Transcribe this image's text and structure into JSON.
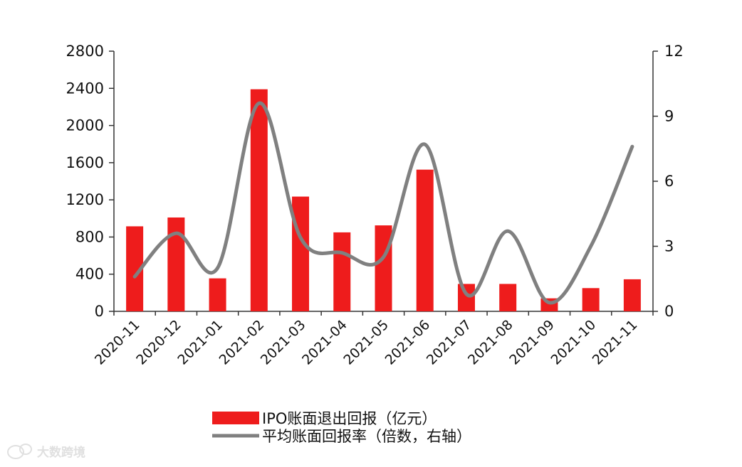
{
  "chart_data": {
    "type": "bar",
    "categories": [
      "2020-11",
      "2020-12",
      "2021-01",
      "2021-02",
      "2021-03",
      "2021-04",
      "2021-05",
      "2021-06",
      "2021-07",
      "2021-08",
      "2021-09",
      "2021-10",
      "2021-11"
    ],
    "series": [
      {
        "name": "IPO账面退出回报（亿元）",
        "type": "bar",
        "axis": "left",
        "color": "#ee1c1c",
        "values": [
          915,
          1010,
          355,
          2390,
          1235,
          850,
          925,
          1525,
          295,
          295,
          140,
          250,
          345
        ]
      },
      {
        "name": "平均账面回报率（倍数，右轴）",
        "type": "line",
        "axis": "right",
        "smooth": true,
        "color": "#808080",
        "values": [
          1.6,
          3.6,
          2.0,
          9.6,
          3.4,
          2.7,
          2.5,
          7.7,
          0.8,
          3.7,
          0.4,
          3.0,
          7.6
        ]
      }
    ],
    "y_left": {
      "ticks": [
        "0",
        "400",
        "800",
        "1200",
        "1600",
        "2000",
        "2400",
        "2800"
      ],
      "ylim": [
        0,
        2800
      ]
    },
    "y_right": {
      "ticks": [
        "0",
        "3",
        "6",
        "9",
        "12"
      ],
      "ylim": [
        0,
        12
      ]
    },
    "grid": false,
    "legend_position": "bottom"
  },
  "watermark": {
    "text": "大数跨境",
    "icon": "bubble-logo-icon"
  }
}
